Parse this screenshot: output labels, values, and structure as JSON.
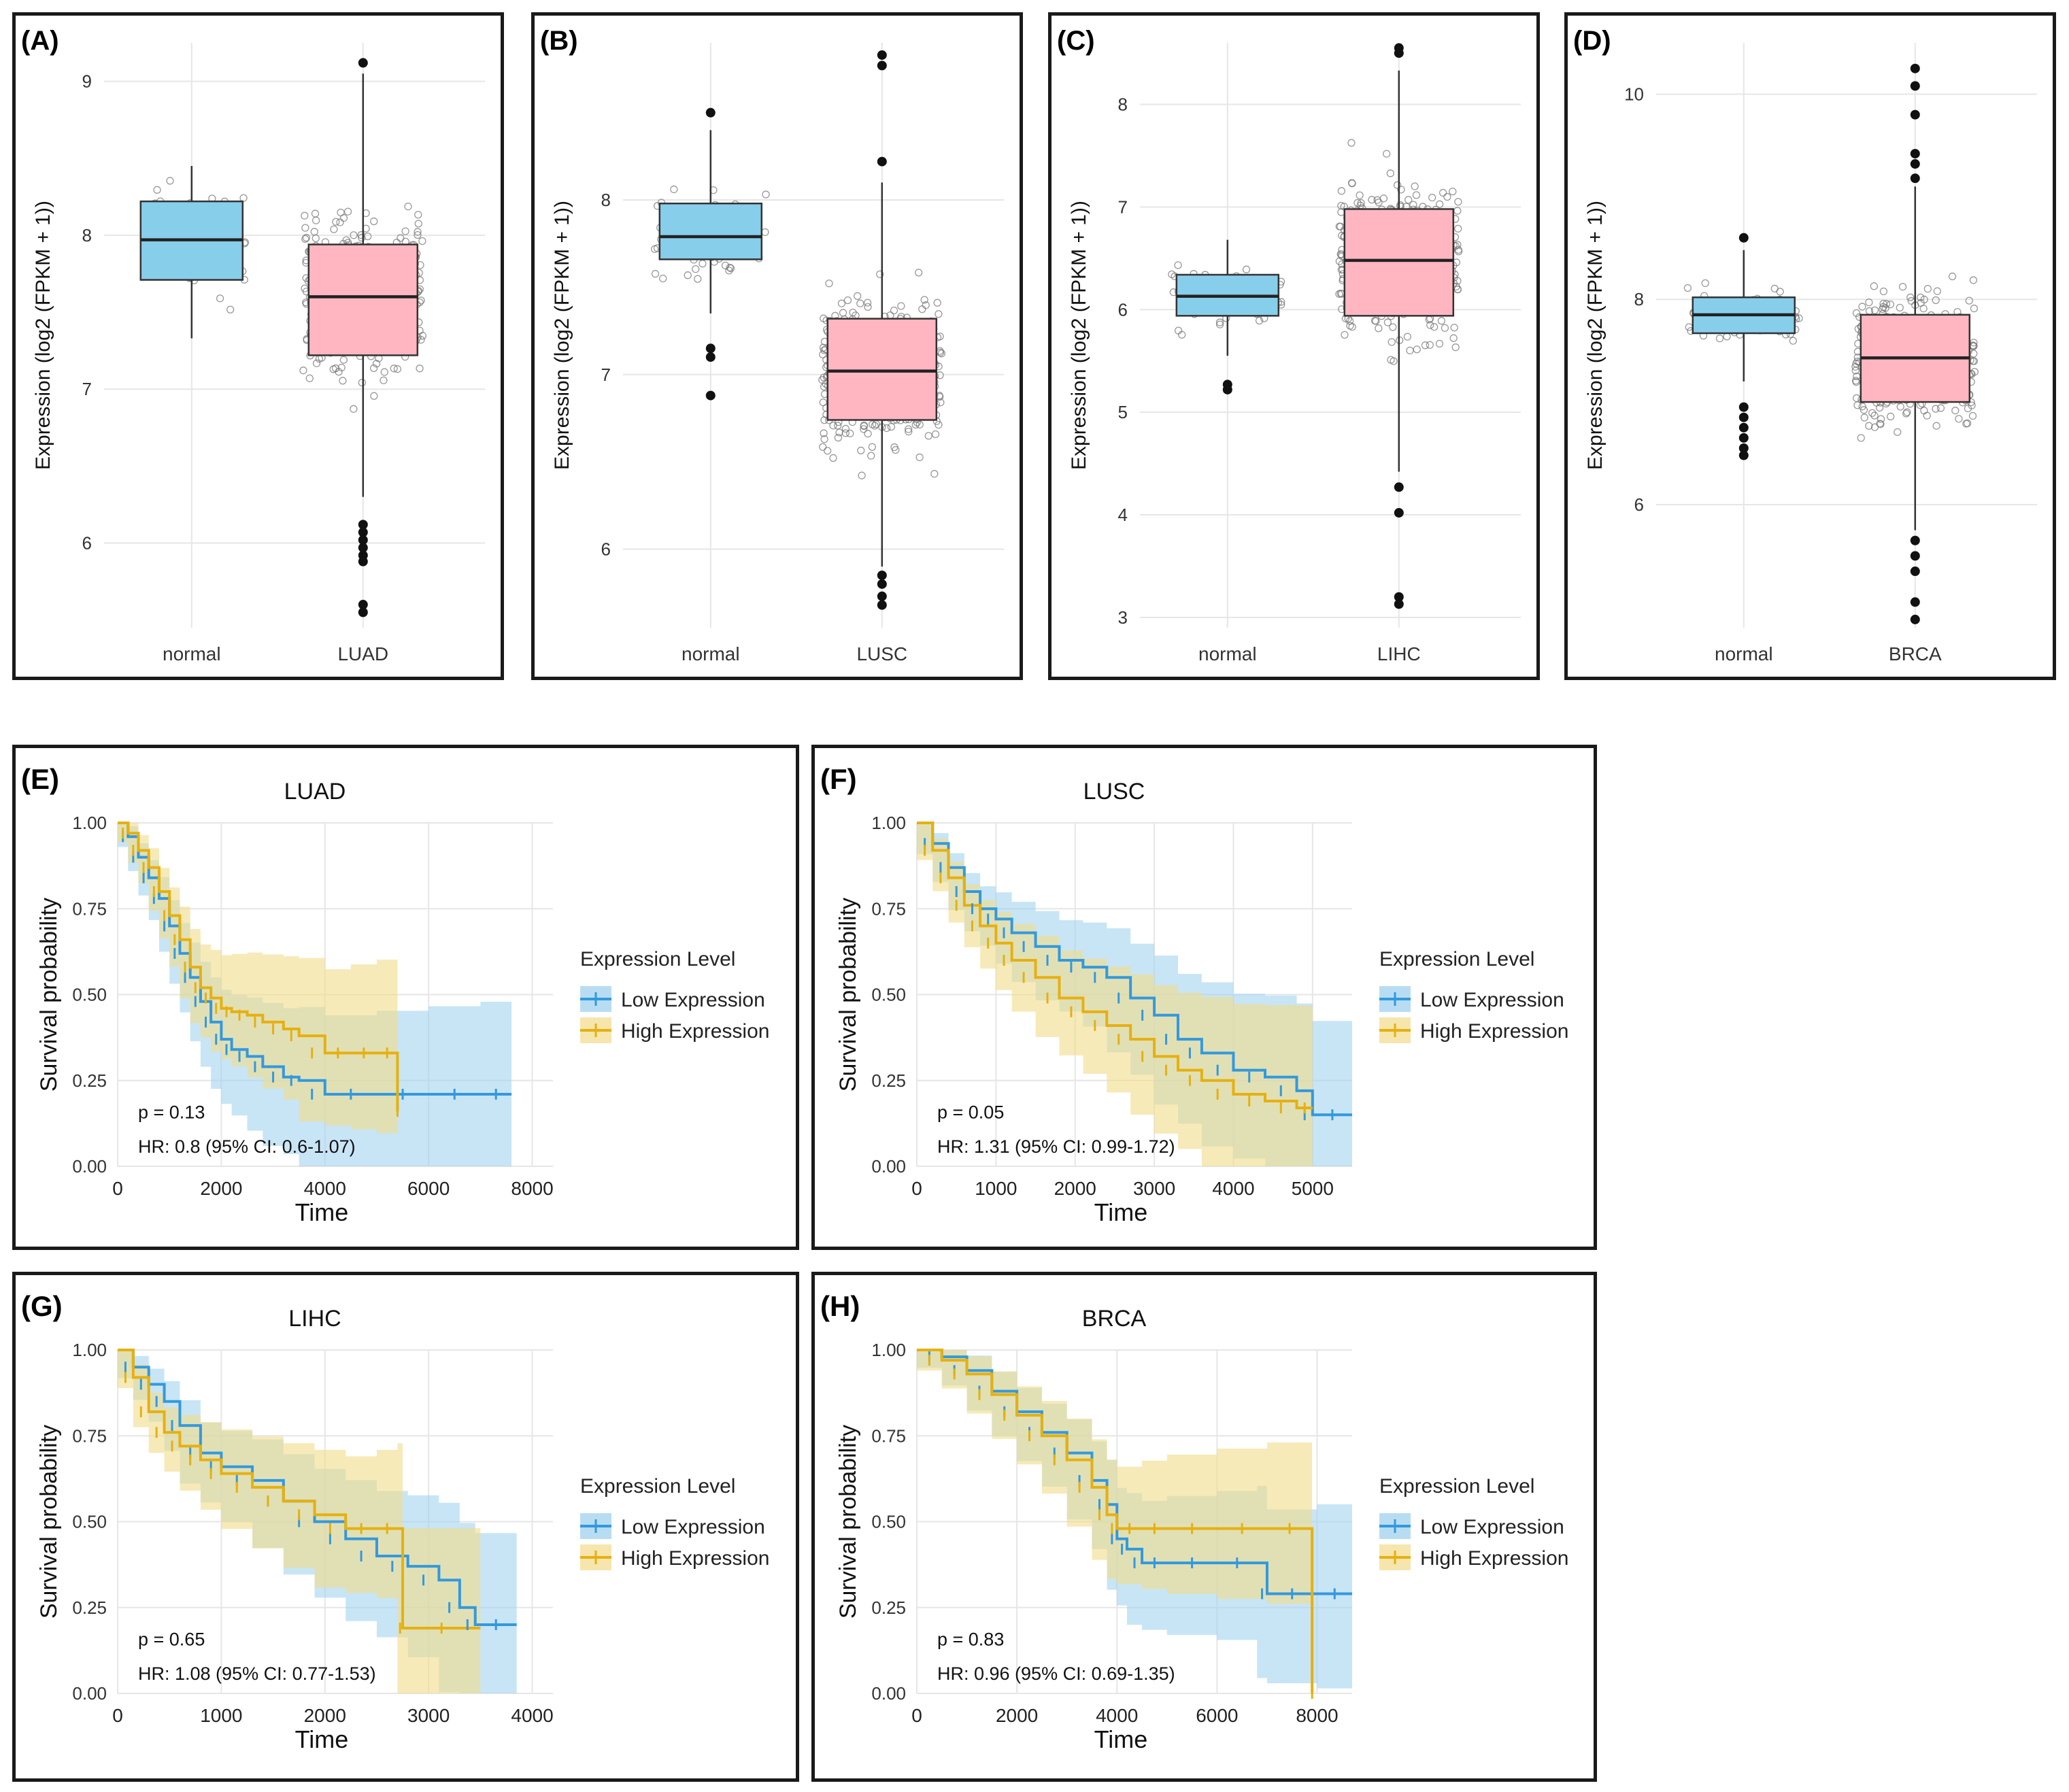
{
  "colors": {
    "normal_box": "#87CEEB",
    "tumor_box": "#FFB6C1",
    "low_line": "#3399DD",
    "high_line": "#E6B010",
    "low_band": "#9ACFEE",
    "high_band": "#F2DC8A",
    "grid": "#e6e6e6",
    "frame": "#1a1a1a"
  },
  "chart_data": [
    {
      "type": "box",
      "panel_label": "(A)",
      "ylabel": "Expression (log2 (FPKM + 1))",
      "categories": [
        "normal",
        "LUAD"
      ],
      "yticks": [
        6,
        7,
        8,
        9
      ],
      "ylim": [
        5.45,
        9.25
      ],
      "boxes": [
        {
          "name": "normal",
          "min": 7.33,
          "q1": 7.71,
          "median": 7.97,
          "q3": 8.22,
          "max": 8.45,
          "outliers": []
        },
        {
          "name": "LUAD",
          "min": 6.3,
          "q1": 7.22,
          "median": 7.6,
          "q3": 7.94,
          "max": 9.05,
          "outliers": [
            9.12,
            6.12,
            6.07,
            6.02,
            5.97,
            5.92,
            5.88,
            5.6,
            5.55
          ]
        }
      ]
    },
    {
      "type": "box",
      "panel_label": "(B)",
      "ylabel": "Expression (log2 (FPKM + 1))",
      "categories": [
        "normal",
        "LUSC"
      ],
      "yticks": [
        6,
        7,
        8
      ],
      "ylim": [
        5.55,
        8.9
      ],
      "boxes": [
        {
          "name": "normal",
          "min": 7.35,
          "q1": 7.66,
          "median": 7.79,
          "q3": 7.98,
          "max": 8.4,
          "outliers": [
            8.5,
            7.15,
            7.1,
            6.88
          ]
        },
        {
          "name": "LUSC",
          "min": 5.9,
          "q1": 6.74,
          "median": 7.02,
          "q3": 7.32,
          "max": 8.1,
          "outliers": [
            8.83,
            8.77,
            8.22,
            5.85,
            5.8,
            5.73,
            5.68
          ]
        }
      ]
    },
    {
      "type": "box",
      "panel_label": "(C)",
      "ylabel": "Expression (log2 (FPKM + 1))",
      "categories": [
        "normal",
        "LIHC"
      ],
      "yticks": [
        3,
        4,
        5,
        6,
        7,
        8
      ],
      "ylim": [
        2.9,
        8.6
      ],
      "boxes": [
        {
          "name": "normal",
          "min": 5.55,
          "q1": 5.94,
          "median": 6.13,
          "q3": 6.34,
          "max": 6.68,
          "outliers": [
            5.27,
            5.22
          ]
        },
        {
          "name": "LIHC",
          "min": 4.42,
          "q1": 5.94,
          "median": 6.48,
          "q3": 6.98,
          "max": 8.33,
          "outliers": [
            8.55,
            8.5,
            4.27,
            4.02,
            3.2,
            3.13
          ]
        }
      ]
    },
    {
      "type": "box",
      "panel_label": "(D)",
      "ylabel": "Expression (log2 (FPKM + 1))",
      "categories": [
        "normal",
        "BRCA"
      ],
      "yticks": [
        6,
        8,
        10
      ],
      "ylim": [
        4.8,
        10.5
      ],
      "boxes": [
        {
          "name": "normal",
          "min": 7.2,
          "q1": 7.67,
          "median": 7.85,
          "q3": 8.02,
          "max": 8.48,
          "outliers": [
            8.6,
            6.95,
            6.85,
            6.75,
            6.65,
            6.55,
            6.48
          ]
        },
        {
          "name": "BRCA",
          "min": 5.75,
          "q1": 7.0,
          "median": 7.43,
          "q3": 7.85,
          "max": 9.1,
          "outliers": [
            10.25,
            10.08,
            9.8,
            9.42,
            9.32,
            9.18,
            5.65,
            5.5,
            5.35,
            5.05,
            4.88
          ]
        }
      ]
    },
    {
      "type": "survival",
      "panel_label": "(E)",
      "title": "LUAD",
      "xlabel": "Time",
      "ylabel": "Survival probability",
      "xlim": [
        0,
        8400
      ],
      "xticks": [
        0,
        2000,
        4000,
        6000,
        8000
      ],
      "yticks": [
        "0.00",
        "0.25",
        "0.50",
        "0.75",
        "1.00"
      ],
      "legend_title": "Expression Level",
      "legend": [
        "Low Expression",
        "High Expression"
      ],
      "pvalue": "p = 0.13",
      "hr": "HR: 0.8 (95% CI: 0.6-1.07)",
      "low": {
        "x": [
          0,
          200,
          400,
          600,
          800,
          1000,
          1200,
          1400,
          1600,
          1800,
          2000,
          2200,
          2500,
          2800,
          3200,
          3500,
          4000,
          5000,
          6000,
          7000,
          7600
        ],
        "y": [
          1,
          0.96,
          0.9,
          0.84,
          0.78,
          0.7,
          0.62,
          0.55,
          0.48,
          0.42,
          0.37,
          0.34,
          0.32,
          0.29,
          0.26,
          0.25,
          0.21,
          0.21,
          0.21,
          0.21,
          0.21
        ]
      },
      "high": {
        "x": [
          0,
          200,
          400,
          600,
          800,
          1000,
          1200,
          1400,
          1600,
          1800,
          2000,
          2200,
          2500,
          2800,
          3200,
          3500,
          4000,
          4500,
          5000,
          5400,
          5400
        ],
        "y": [
          1,
          0.97,
          0.92,
          0.87,
          0.8,
          0.73,
          0.66,
          0.58,
          0.52,
          0.49,
          0.46,
          0.45,
          0.44,
          0.42,
          0.4,
          0.38,
          0.33,
          0.33,
          0.33,
          0.33,
          0.16
        ]
      }
    },
    {
      "type": "survival",
      "panel_label": "(F)",
      "title": "LUSC",
      "xlabel": "Time",
      "ylabel": "Survival probability",
      "xlim": [
        0,
        5500
      ],
      "xticks": [
        0,
        1000,
        2000,
        3000,
        4000,
        5000
      ],
      "yticks": [
        "0.00",
        "0.25",
        "0.50",
        "0.75",
        "1.00"
      ],
      "legend_title": "Expression Level",
      "legend": [
        "Low Expression",
        "High Expression"
      ],
      "pvalue": "p = 0.05",
      "hr": "HR: 1.31 (95% CI: 0.99-1.72)",
      "low": {
        "x": [
          0,
          200,
          400,
          600,
          800,
          1000,
          1200,
          1500,
          1800,
          2100,
          2400,
          2700,
          3000,
          3300,
          3600,
          4000,
          4400,
          4800,
          5000,
          5500
        ],
        "y": [
          1,
          0.94,
          0.87,
          0.8,
          0.75,
          0.72,
          0.68,
          0.64,
          0.6,
          0.58,
          0.55,
          0.49,
          0.44,
          0.37,
          0.33,
          0.28,
          0.26,
          0.22,
          0.15,
          0.15
        ]
      },
      "high": {
        "x": [
          0,
          200,
          400,
          600,
          800,
          1000,
          1200,
          1500,
          1800,
          2100,
          2400,
          2700,
          3000,
          3300,
          3600,
          4000,
          4400,
          4800,
          5000
        ],
        "y": [
          1,
          0.92,
          0.84,
          0.76,
          0.7,
          0.65,
          0.6,
          0.55,
          0.49,
          0.45,
          0.41,
          0.37,
          0.32,
          0.28,
          0.25,
          0.21,
          0.19,
          0.17,
          0.17
        ]
      }
    },
    {
      "type": "survival",
      "panel_label": "(G)",
      "title": "LIHC",
      "xlabel": "Time",
      "ylabel": "Survival probability",
      "xlim": [
        0,
        4200
      ],
      "xticks": [
        0,
        1000,
        2000,
        3000,
        4000
      ],
      "yticks": [
        "0.00",
        "0.25",
        "0.50",
        "0.75",
        "1.00"
      ],
      "legend_title": "Expression Level",
      "legend": [
        "Low Expression",
        "High Expression"
      ],
      "pvalue": "p = 0.65",
      "hr": "HR: 1.08 (95% CI: 0.77-1.53)",
      "low": {
        "x": [
          0,
          150,
          300,
          450,
          600,
          800,
          1000,
          1300,
          1600,
          1900,
          2200,
          2500,
          2800,
          3100,
          3300,
          3450,
          3850
        ],
        "y": [
          1,
          0.95,
          0.9,
          0.85,
          0.78,
          0.7,
          0.66,
          0.62,
          0.56,
          0.5,
          0.45,
          0.4,
          0.37,
          0.33,
          0.25,
          0.2,
          0.2
        ]
      },
      "high": {
        "x": [
          0,
          150,
          300,
          450,
          600,
          800,
          1000,
          1300,
          1600,
          1900,
          2200,
          2500,
          2700,
          2750,
          3500
        ],
        "y": [
          1,
          0.92,
          0.82,
          0.76,
          0.72,
          0.68,
          0.64,
          0.6,
          0.56,
          0.52,
          0.48,
          0.48,
          0.48,
          0.19,
          0.19
        ]
      }
    },
    {
      "type": "survival",
      "panel_label": "(H)",
      "title": "BRCA",
      "xlabel": "Time",
      "ylabel": "Survival probability",
      "xlim": [
        0,
        8700
      ],
      "xticks": [
        0,
        2000,
        4000,
        6000,
        8000
      ],
      "yticks": [
        "0.00",
        "0.25",
        "0.50",
        "0.75",
        "1.00"
      ],
      "legend_title": "Expression Level",
      "legend": [
        "Low Expression",
        "High Expression"
      ],
      "pvalue": "p = 0.83",
      "hr": "HR: 0.96 (95% CI: 0.69-1.35)",
      "low": {
        "x": [
          0,
          500,
          1000,
          1500,
          2000,
          2500,
          3000,
          3500,
          3800,
          4000,
          4200,
          4500,
          5000,
          6000,
          6800,
          7000,
          8000,
          8700
        ],
        "y": [
          1,
          0.98,
          0.94,
          0.88,
          0.82,
          0.76,
          0.7,
          0.62,
          0.55,
          0.45,
          0.42,
          0.38,
          0.38,
          0.38,
          0.38,
          0.29,
          0.29,
          0.29
        ]
      },
      "high": {
        "x": [
          0,
          500,
          1000,
          1500,
          2000,
          2500,
          3000,
          3500,
          3800,
          4000,
          4500,
          5000,
          6000,
          7000,
          7900,
          7900
        ],
        "y": [
          1,
          0.97,
          0.93,
          0.87,
          0.81,
          0.75,
          0.68,
          0.6,
          0.52,
          0.48,
          0.48,
          0.48,
          0.48,
          0.48,
          0.48,
          0.0
        ]
      }
    }
  ]
}
